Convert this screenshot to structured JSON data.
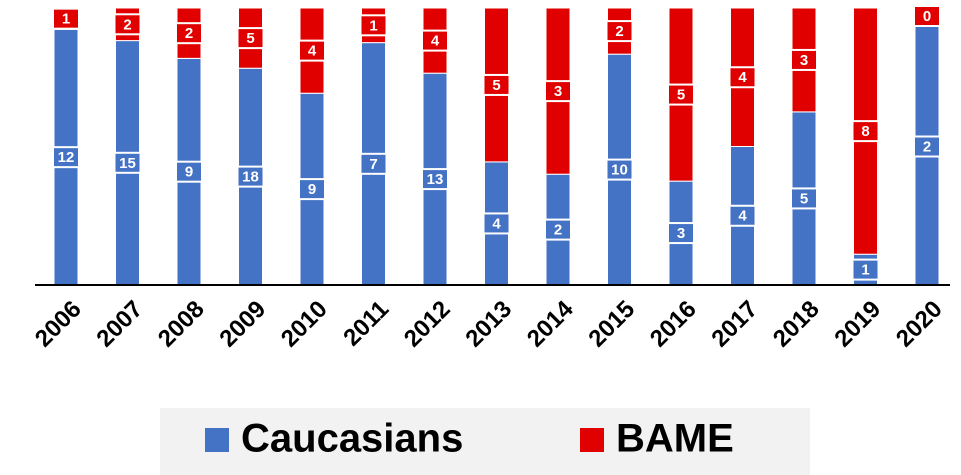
{
  "chart_data": {
    "type": "bar",
    "stacking": "percent",
    "categories": [
      "2006",
      "2007",
      "2008",
      "2009",
      "2010",
      "2011",
      "2012",
      "2013",
      "2014",
      "2015",
      "2016",
      "2017",
      "2018",
      "2019",
      "2020"
    ],
    "series": [
      {
        "name": "Caucasians",
        "color": "#4472c4",
        "values": [
          12,
          15,
          9,
          18,
          9,
          7,
          13,
          4,
          2,
          10,
          3,
          4,
          5,
          1,
          2
        ]
      },
      {
        "name": "BAME",
        "color": "#e00000",
        "values": [
          1,
          2,
          2,
          5,
          4,
          1,
          4,
          5,
          3,
          2,
          5,
          4,
          3,
          8,
          0
        ]
      }
    ]
  }
}
